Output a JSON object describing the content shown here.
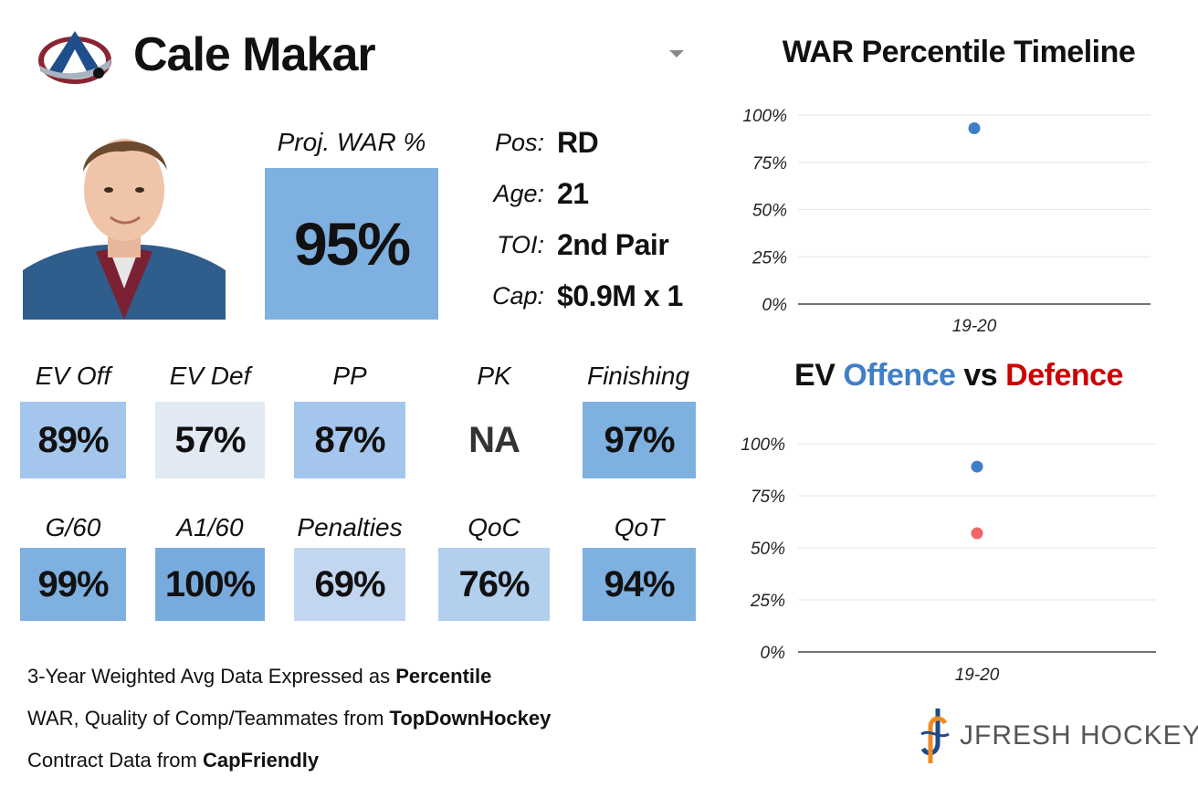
{
  "header": {
    "player_name": "Cale Makar",
    "team_logo_icon": "avalanche-logo-icon",
    "dropdown_icon": "chevron-down-icon"
  },
  "headshot": {
    "icon": "player-headshot-icon"
  },
  "projected_war": {
    "label": "Proj. WAR %",
    "value": "95%",
    "color": "#7eb0e0"
  },
  "info": [
    {
      "key": "Pos:",
      "value": "RD"
    },
    {
      "key": "Age:",
      "value": "21"
    },
    {
      "key": "TOI:",
      "value": "2nd Pair"
    },
    {
      "key": "Cap:",
      "value": "$0.9M x 1"
    }
  ],
  "stats_row1": [
    {
      "label": "EV Off",
      "value": "89%",
      "color": "#a4c6ec"
    },
    {
      "label": "EV Def",
      "value": "57%",
      "color": "#e1e9f3"
    },
    {
      "label": "PP",
      "value": "87%",
      "color": "#a4c6ec"
    },
    {
      "label": "PK",
      "value": "NA",
      "color": "#ffffff"
    },
    {
      "label": "Finishing",
      "value": "97%",
      "color": "#7eb0e0"
    }
  ],
  "stats_row2": [
    {
      "label": "G/60",
      "value": "99%",
      "color": "#7eb0e0"
    },
    {
      "label": "A1/60",
      "value": "100%",
      "color": "#78abdd"
    },
    {
      "label": "Penalties",
      "value": "69%",
      "color": "#c2d7ef"
    },
    {
      "label": "QoC",
      "value": "76%",
      "color": "#b2cfee"
    },
    {
      "label": "QoT",
      "value": "94%",
      "color": "#7eb0e0"
    }
  ],
  "footnotes": [
    {
      "text": "3-Year Weighted Avg Data Expressed as ",
      "bold": "Percentile"
    },
    {
      "text": "WAR, Quality of Comp/Teammates from ",
      "bold": "TopDownHockey"
    },
    {
      "text": "Contract Data from ",
      "bold": "CapFriendly"
    }
  ],
  "chart_data": [
    {
      "type": "scatter",
      "title": "WAR Percentile Timeline",
      "categories": [
        "19-20"
      ],
      "series": [
        {
          "values": [
            93
          ],
          "color": "#3f7fc8"
        }
      ],
      "yticks": [
        "0%",
        "25%",
        "50%",
        "75%",
        "100%"
      ],
      "ylim": [
        0,
        100
      ],
      "grid": true
    },
    {
      "type": "scatter",
      "title_parts": {
        "pre": "EV ",
        "offence": "Offence",
        "mid": " vs ",
        "defence": "Defence"
      },
      "categories": [
        "19-20"
      ],
      "series": [
        {
          "name": "Offence",
          "values": [
            89
          ],
          "color": "#3f7fc8"
        },
        {
          "name": "Defence",
          "values": [
            57
          ],
          "color": "#ee6666"
        }
      ],
      "yticks": [
        "0%",
        "25%",
        "50%",
        "75%",
        "100%"
      ],
      "ylim": [
        0,
        100
      ],
      "grid": true,
      "colors": {
        "offence": "#3f7fc8",
        "defence": "#cc0000"
      }
    }
  ],
  "brand": {
    "text": "JFRESH HOCKEY",
    "icon": "jfresh-logo-icon"
  }
}
